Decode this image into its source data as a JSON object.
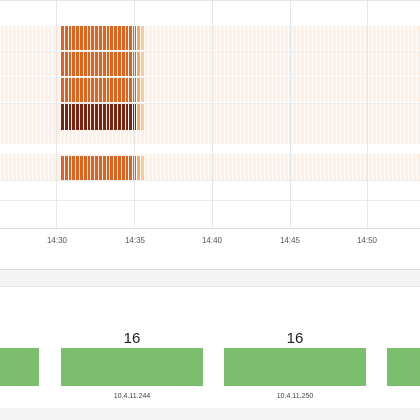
{
  "colors": {
    "heat_bg": "#fdf0e6",
    "heat_low": "#f4a35e",
    "heat_mid": "#e0621f",
    "heat_high": "#7a2412",
    "bar_fill": "#7bbf6e"
  },
  "heatmap": {
    "time_ticks": [
      "14:30",
      "14:35",
      "14:40",
      "14:45",
      "14:50"
    ],
    "rows": [
      {
        "intensity": "mid",
        "has_data": true
      },
      {
        "intensity": "mid",
        "has_data": true
      },
      {
        "intensity": "mid",
        "has_data": true
      },
      {
        "intensity": "high",
        "has_data": true
      },
      {
        "intensity": "none",
        "has_data": false
      },
      {
        "intensity": "mid",
        "has_data": true
      }
    ]
  },
  "hosts": {
    "items": [
      {
        "value": "",
        "label": ""
      },
      {
        "value": "16",
        "label": "10.4.11.244"
      },
      {
        "value": "16",
        "label": "10.4.11.250"
      },
      {
        "value": "",
        "label": ""
      }
    ]
  }
}
